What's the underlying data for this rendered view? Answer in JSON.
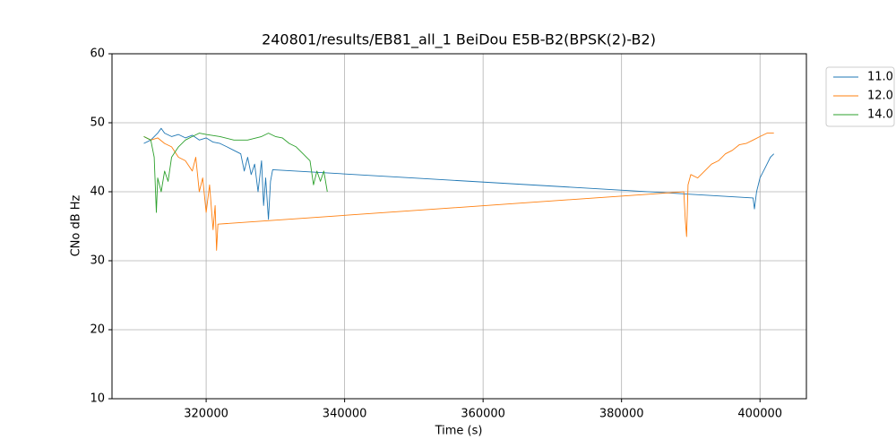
{
  "chart_data": {
    "type": "line",
    "title": "240801/results/EB81_all_1 BeiDou E5B-B2(BPSK(2)-B2)",
    "xlabel": "Time (s)",
    "ylabel": "CNo dB Hz",
    "xlim": [
      306400,
      406700
    ],
    "xticks": [
      320000,
      340000,
      360000,
      380000,
      400000
    ],
    "ylim": [
      10,
      60
    ],
    "yticks": [
      10,
      20,
      30,
      40,
      50,
      60
    ],
    "grid": true,
    "legend": "right",
    "series": [
      {
        "name": "11.0",
        "color": "#1f77b4",
        "x": [
          311000,
          312000,
          313000,
          313500,
          314000,
          315000,
          316000,
          317000,
          318000,
          319000,
          320000,
          321000,
          322000,
          323000,
          324000,
          325000,
          325500,
          326000,
          326500,
          327000,
          327500,
          328000,
          328300,
          328600,
          329000,
          329300,
          329600,
          399000,
          399200,
          399500,
          400000,
          400500,
          401000,
          401500,
          402000
        ],
        "values": [
          47,
          47.5,
          48.5,
          49.2,
          48.5,
          48,
          48.3,
          47.8,
          48.2,
          47.5,
          47.8,
          47.2,
          47,
          46.5,
          46,
          45.5,
          43,
          45,
          42.5,
          44,
          40,
          44.5,
          38,
          42,
          36,
          41.5,
          43.2,
          39.1,
          37.5,
          40,
          42,
          43,
          44,
          45,
          45.5
        ]
      },
      {
        "name": "12.0",
        "color": "#ff7f0e",
        "x": [
          311000,
          312000,
          313000,
          314000,
          315000,
          316000,
          317000,
          318000,
          318500,
          319000,
          319500,
          320000,
          320500,
          321000,
          321300,
          321500,
          321700,
          389000,
          389200,
          389400,
          389600,
          390000,
          391000,
          392000,
          393000,
          394000,
          395000,
          396000,
          397000,
          398000,
          399000,
          400000,
          401000,
          402000
        ],
        "values": [
          48,
          47.5,
          47.8,
          47,
          46.5,
          45,
          44.5,
          43,
          45,
          40,
          42,
          37,
          41,
          34.5,
          38,
          31.5,
          35.3,
          40,
          36,
          33.5,
          41,
          42.5,
          42,
          43,
          44,
          44.5,
          45.5,
          46,
          46.8,
          47,
          47.5,
          48,
          48.5,
          48.5
        ]
      },
      {
        "name": "14.0",
        "color": "#2ca02c",
        "x": [
          311000,
          312000,
          312500,
          312800,
          313000,
          313500,
          314000,
          314500,
          315000,
          316000,
          317000,
          318000,
          319000,
          320000,
          322000,
          324000,
          326000,
          328000,
          329000,
          330000,
          331000,
          332000,
          333000,
          334000,
          335000,
          335500,
          336000,
          336500,
          337000,
          337500
        ],
        "values": [
          48,
          47.5,
          45,
          37,
          42,
          40,
          43,
          41.5,
          45,
          46.5,
          47.5,
          48,
          48.5,
          48.3,
          48,
          47.5,
          47.5,
          48,
          48.5,
          48,
          47.8,
          47,
          46.5,
          45.5,
          44.5,
          41,
          43,
          41.5,
          43,
          40
        ]
      }
    ]
  }
}
